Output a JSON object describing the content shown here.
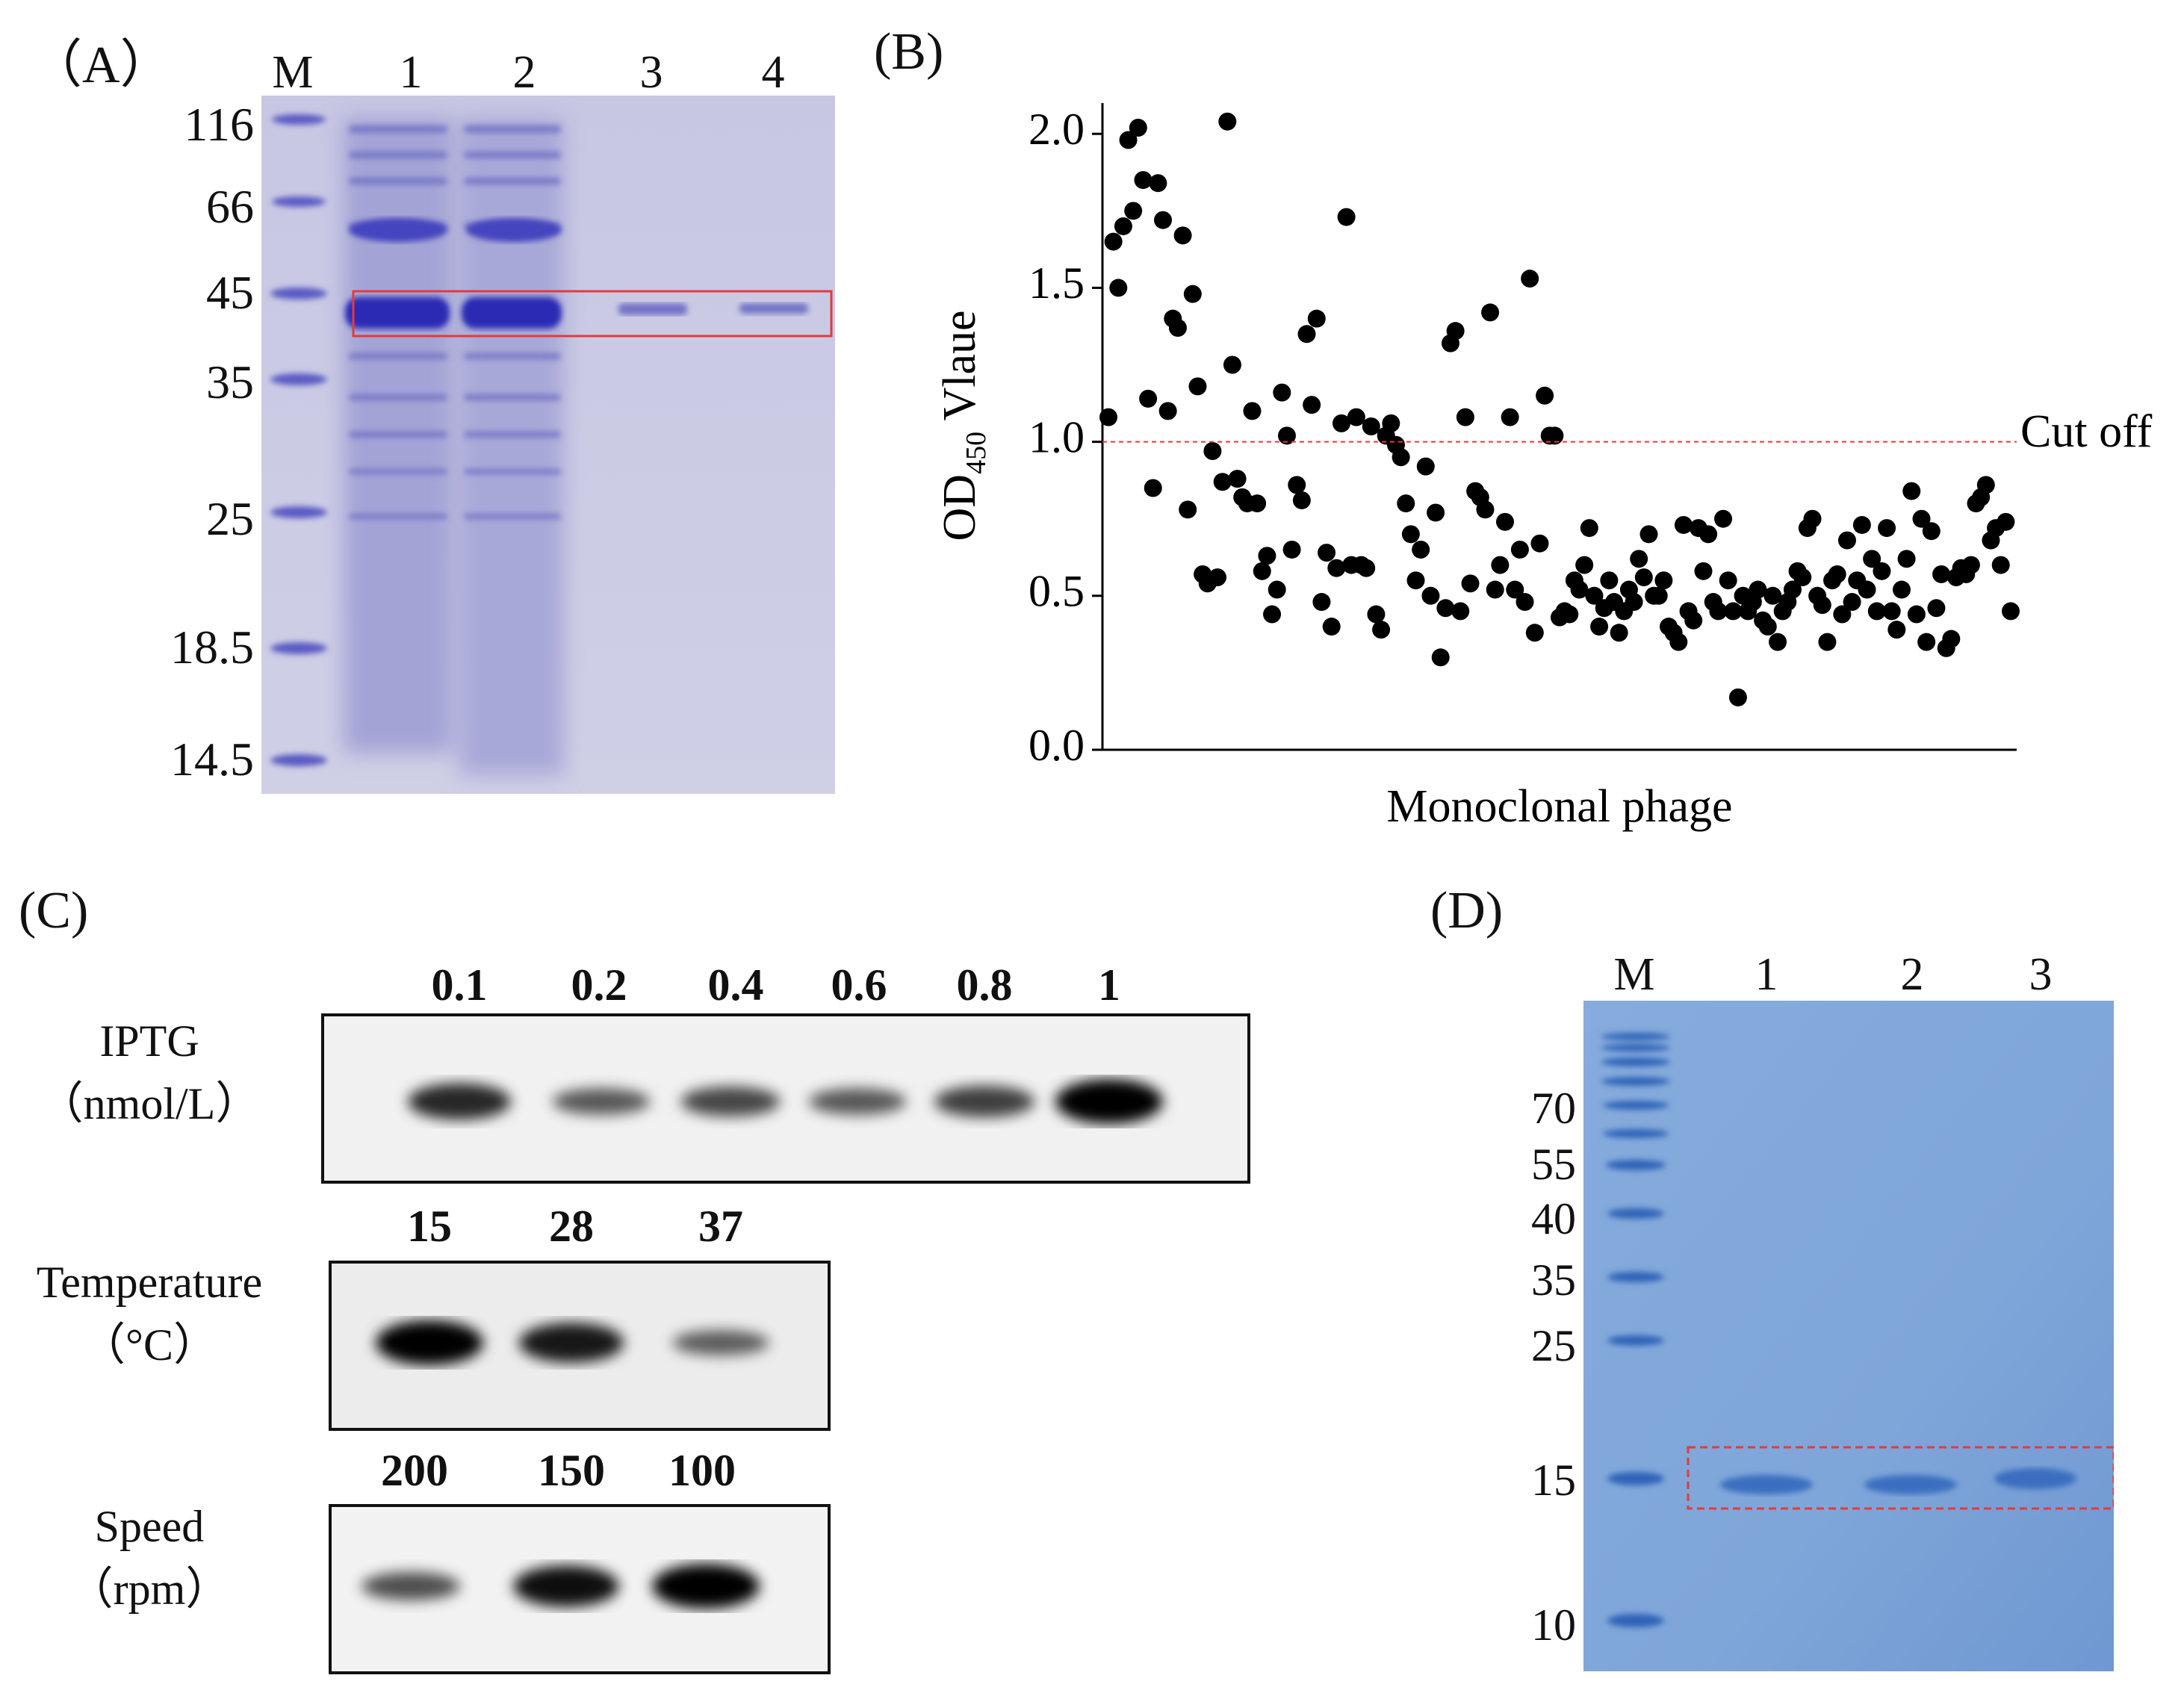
{
  "panelA": {
    "label": "（A）",
    "lanes": [
      "M",
      "1",
      "2",
      "3",
      "4"
    ],
    "markers": [
      "116",
      "66",
      "45",
      "35",
      "25",
      "18.5",
      "14.5"
    ],
    "colors": {
      "gel": "#c3c3e1",
      "band": "#3434b8",
      "box": "#e33b3b"
    }
  },
  "panelB": {
    "label": "(B)",
    "cutoff_label": "Cut off",
    "ylabel_main": "OD",
    "ylabel_sub": "450",
    "ylabel_rest": " Vlaue",
    "xlabel": "Monoclonal phage",
    "yticks": [
      "0.0",
      "0.5",
      "1.0",
      "1.5",
      "2.0"
    ],
    "chart_data": {
      "type": "scatter",
      "ylim": [
        0,
        2.1
      ],
      "cutoff": 1.0,
      "y": [
        1.08,
        1.65,
        1.5,
        1.7,
        1.98,
        1.75,
        2.02,
        1.85,
        1.14,
        0.85,
        1.84,
        1.72,
        1.1,
        1.4,
        1.37,
        1.67,
        0.78,
        1.48,
        1.18,
        0.57,
        0.54,
        0.97,
        0.56,
        0.87,
        2.04,
        1.25,
        0.88,
        0.82,
        0.8,
        1.1,
        0.8,
        0.58,
        0.63,
        0.44,
        0.52,
        1.16,
        1.02,
        0.65,
        0.86,
        0.81,
        1.35,
        1.12,
        1.4,
        0.48,
        0.64,
        0.4,
        0.59,
        1.06,
        1.73,
        0.6,
        1.08,
        0.6,
        0.59,
        1.05,
        0.44,
        0.39,
        1.02,
        1.06,
        0.99,
        0.95,
        0.8,
        0.7,
        0.55,
        0.65,
        0.92,
        0.5,
        0.77,
        0.3,
        0.46,
        1.32,
        1.36,
        0.45,
        1.08,
        0.54,
        0.84,
        0.82,
        0.78,
        1.42,
        0.52,
        0.6,
        0.74,
        1.08,
        0.52,
        0.65,
        0.48,
        1.53,
        0.38,
        0.67,
        1.15,
        1.02,
        1.02,
        0.43,
        0.45,
        0.44,
        0.55,
        0.52,
        0.6,
        0.72,
        0.5,
        0.4,
        0.46,
        0.55,
        0.48,
        0.38,
        0.45,
        0.52,
        0.48,
        0.62,
        0.56,
        0.7,
        0.5,
        0.5,
        0.55,
        0.4,
        0.38,
        0.35,
        0.73,
        0.45,
        0.42,
        0.72,
        0.58,
        0.7,
        0.48,
        0.45,
        0.75,
        0.55,
        0.45,
        0.17,
        0.5,
        0.45,
        0.48,
        0.52,
        0.42,
        0.4,
        0.5,
        0.35,
        0.45,
        0.48,
        0.52,
        0.58,
        0.56,
        0.72,
        0.75,
        0.5,
        0.47,
        0.35,
        0.55,
        0.57,
        0.44,
        0.68,
        0.48,
        0.55,
        0.73,
        0.52,
        0.62,
        0.45,
        0.58,
        0.72,
        0.45,
        0.39,
        0.52,
        0.62,
        0.84,
        0.44,
        0.75,
        0.35,
        0.71,
        0.46,
        0.57,
        0.33,
        0.36,
        0.56,
        0.59,
        0.57,
        0.6,
        0.8,
        0.82,
        0.86,
        0.68,
        0.72,
        0.6,
        0.74,
        0.45
      ]
    }
  },
  "panelC": {
    "label": "(C)",
    "rows": [
      {
        "title": "IPTG",
        "unit": "（nmol/L）",
        "conditions": [
          "0.1",
          "0.2",
          "0.4",
          "0.6",
          "0.8",
          "1"
        ],
        "intensity": [
          0.75,
          0.45,
          0.55,
          0.45,
          0.6,
          1.0
        ]
      },
      {
        "title": "Temperature",
        "unit": "（°C）",
        "conditions": [
          "15",
          "28",
          "37"
        ],
        "intensity": [
          1.0,
          0.85,
          0.4
        ]
      },
      {
        "title": "Speed",
        "unit": "（rpm）",
        "conditions": [
          "200",
          "150",
          "100"
        ],
        "intensity": [
          0.5,
          0.9,
          1.0
        ]
      }
    ]
  },
  "panelD": {
    "label": "(D)",
    "lanes": [
      "M",
      "1",
      "2",
      "3"
    ],
    "markers": [
      "70",
      "55",
      "40",
      "35",
      "25",
      "15",
      "10"
    ],
    "colors": {
      "gel": "#7fa6d9",
      "band": "#2f63b8",
      "box": "#e33b3b"
    }
  }
}
